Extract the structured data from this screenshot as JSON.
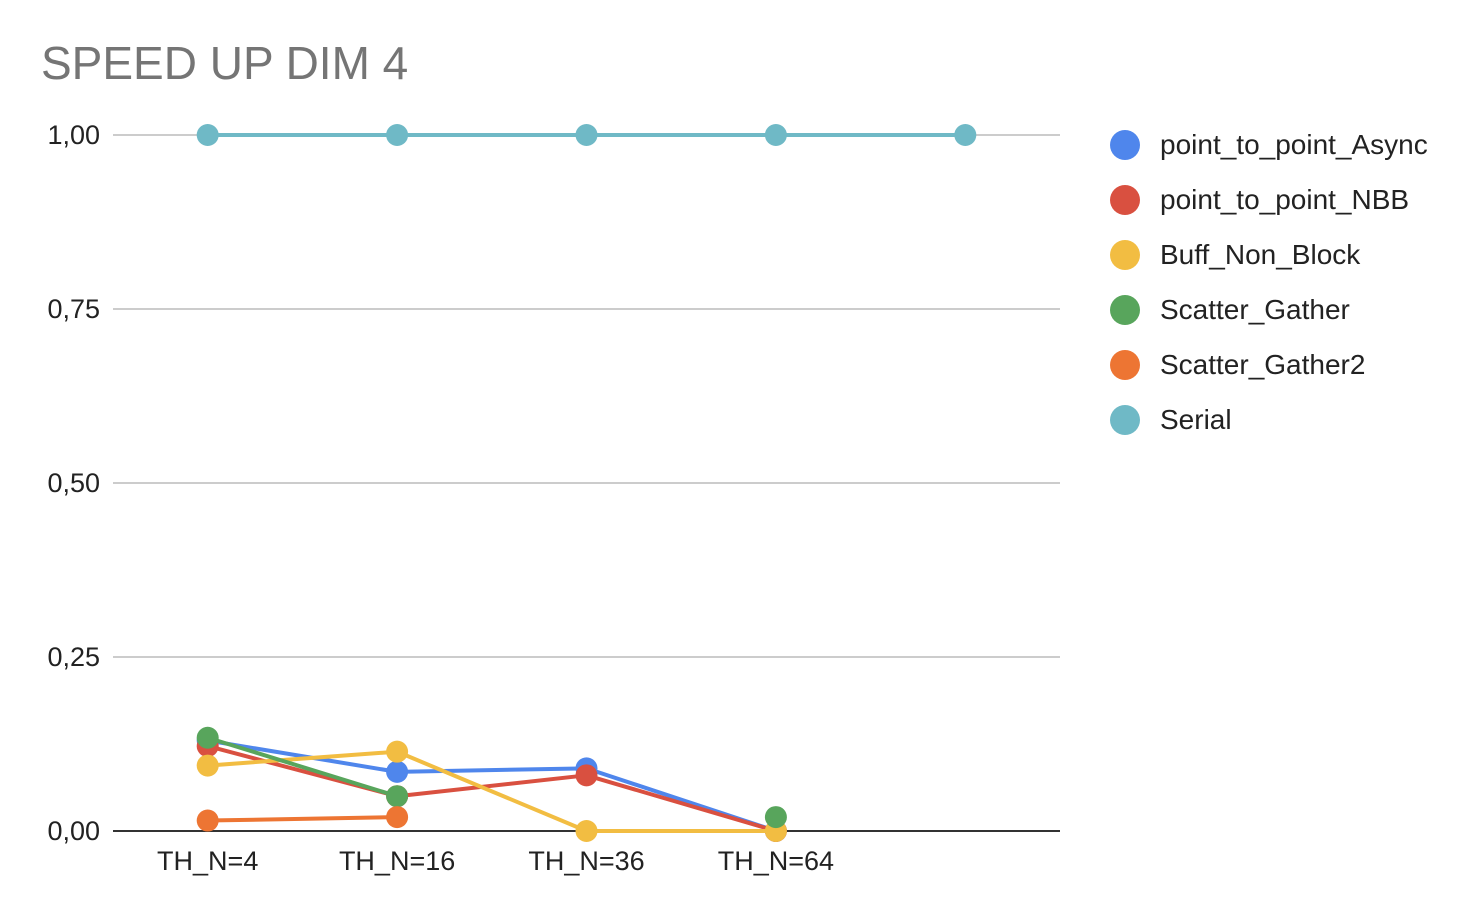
{
  "chart_data": {
    "type": "line",
    "title": "SPEED UP DIM 4",
    "xlabel": "",
    "ylabel": "",
    "categories": [
      "TH_N=4",
      "TH_N=16",
      "TH_N=36",
      "TH_N=64",
      ""
    ],
    "ylim": [
      0,
      1
    ],
    "yticks": [
      "0,00",
      "0,25",
      "0,50",
      "0,75",
      "1,00"
    ],
    "grid": true,
    "legend_position": "right",
    "series": [
      {
        "name": "point_to_point_Async",
        "color": "#4f86ec",
        "values": [
          0.13,
          0.085,
          0.09,
          0.0,
          null
        ]
      },
      {
        "name": "point_to_point_NBB",
        "color": "#d95040",
        "values": [
          0.122,
          0.05,
          0.08,
          0.0,
          null
        ]
      },
      {
        "name": "Buff_Non_Block",
        "color": "#f2bd42",
        "values": [
          0.094,
          0.114,
          0.0,
          0.0,
          null
        ]
      },
      {
        "name": "Scatter_Gather",
        "color": "#58a55c",
        "values": [
          0.134,
          0.05,
          null,
          0.02,
          null
        ]
      },
      {
        "name": "Scatter_Gather2",
        "color": "#ed7533",
        "values": [
          0.015,
          0.02,
          null,
          null,
          null
        ]
      },
      {
        "name": "Serial",
        "color": "#6fb9c6",
        "values": [
          1.0,
          1.0,
          1.0,
          1.0,
          1.0
        ]
      }
    ]
  }
}
